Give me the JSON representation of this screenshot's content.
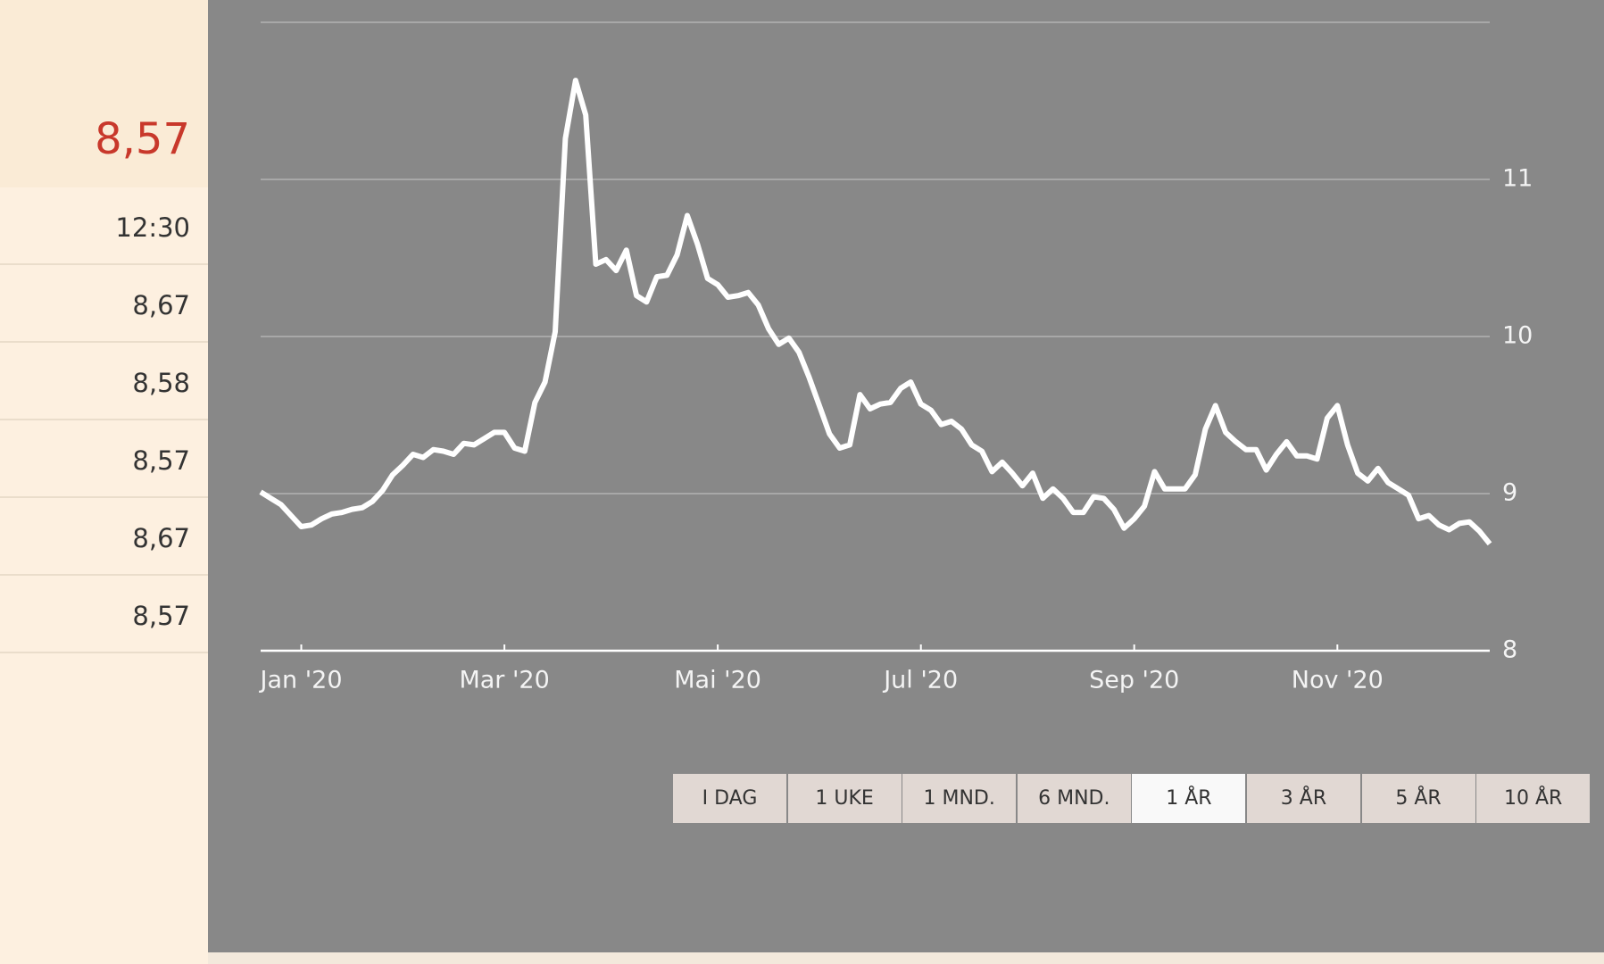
{
  "sidebar": {
    "last": "8,57",
    "time": "12:30",
    "rows": [
      "8,67",
      "8,58",
      "8,57",
      "8,67",
      "8,57"
    ]
  },
  "chart_data": {
    "type": "line",
    "color": "#ffffff",
    "grid": true,
    "y_axis_side": "right",
    "categories": [
      null,
      null,
      null,
      null,
      "Jan '20",
      null,
      null,
      null,
      null,
      null,
      null,
      null,
      null,
      null,
      null,
      null,
      null,
      null,
      null,
      null,
      null,
      null,
      null,
      null,
      "Mar '20",
      null,
      null,
      null,
      null,
      null,
      null,
      null,
      null,
      null,
      null,
      null,
      null,
      null,
      null,
      null,
      null,
      null,
      null,
      null,
      null,
      "Mai '20",
      null,
      null,
      null,
      null,
      null,
      null,
      null,
      null,
      null,
      null,
      null,
      null,
      null,
      null,
      null,
      null,
      null,
      null,
      null,
      "Jul '20",
      null,
      null,
      null,
      null,
      null,
      null,
      null,
      null,
      null,
      null,
      null,
      null,
      null,
      null,
      null,
      null,
      null,
      null,
      null,
      null,
      "Sep '20",
      null,
      null,
      null,
      null,
      null,
      null,
      null,
      null,
      null,
      null,
      null,
      null,
      null,
      null,
      null,
      null,
      null,
      null,
      null,
      "Nov '20",
      null,
      null,
      null,
      null,
      null,
      null,
      null,
      null,
      null,
      null,
      null,
      null,
      null,
      null,
      null
    ],
    "values": [
      9.01,
      8.97,
      8.93,
      8.86,
      8.79,
      8.8,
      8.84,
      8.87,
      8.88,
      8.9,
      8.91,
      8.95,
      9.02,
      9.12,
      9.18,
      9.25,
      9.23,
      9.28,
      9.27,
      9.25,
      9.32,
      9.31,
      9.35,
      9.39,
      9.39,
      9.29,
      9.27,
      9.58,
      9.71,
      10.03,
      11.26,
      11.63,
      11.41,
      10.46,
      10.49,
      10.42,
      10.55,
      10.26,
      10.22,
      10.38,
      10.39,
      10.52,
      10.77,
      10.59,
      10.37,
      10.33,
      10.25,
      10.26,
      10.28,
      10.2,
      10.05,
      9.95,
      9.99,
      9.9,
      9.74,
      9.56,
      9.38,
      9.29,
      9.31,
      9.63,
      9.54,
      9.57,
      9.58,
      9.67,
      9.71,
      9.57,
      9.53,
      9.44,
      9.46,
      9.41,
      9.31,
      9.27,
      9.14,
      9.2,
      9.13,
      9.05,
      9.13,
      8.97,
      9.03,
      8.97,
      8.88,
      8.88,
      8.98,
      8.97,
      8.9,
      8.78,
      8.84,
      8.92,
      9.14,
      9.03,
      9.03,
      9.03,
      9.12,
      9.41,
      9.56,
      9.39,
      9.33,
      9.28,
      9.28,
      9.15,
      9.25,
      9.33,
      9.24,
      9.24,
      9.22,
      9.48,
      9.56,
      9.31,
      9.13,
      9.08,
      9.16,
      9.07,
      9.03,
      8.99,
      8.84,
      8.86,
      8.8,
      8.77,
      8.81,
      8.82,
      8.76,
      8.68
    ],
    "ylim": [
      8,
      12
    ],
    "yticks": [
      8,
      9,
      10,
      11
    ]
  },
  "range_buttons": {
    "labels": [
      "I DAG",
      "1 UKE",
      "1 MND.",
      "6 MND.",
      "1 ÅR",
      "3 ÅR",
      "5 ÅR",
      "10 ÅR"
    ],
    "active": 4
  }
}
